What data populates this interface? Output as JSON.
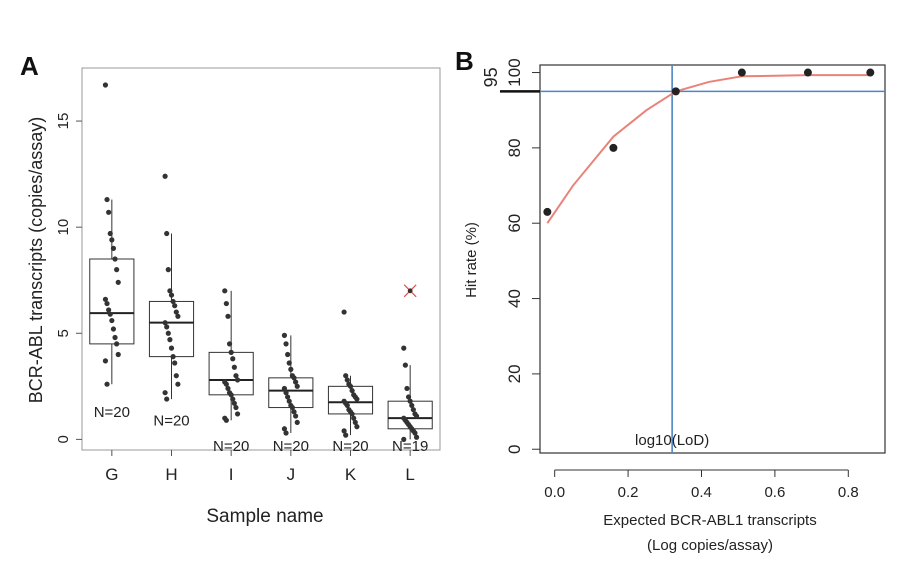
{
  "chart_data": [
    {
      "type": "box",
      "panel_label": "A",
      "xlabel": "Sample name",
      "ylabel": "BCR-ABL transcripts (copies/assay)",
      "ylim": [
        -0.5,
        17.5
      ],
      "yticks": [
        0,
        5,
        10,
        15
      ],
      "ytick_labels": [
        "0",
        "5",
        "10",
        "15"
      ],
      "categories": [
        "G",
        "H",
        "I",
        "J",
        "K",
        "L"
      ],
      "boxes": [
        {
          "name": "G",
          "q1": 4.5,
          "median": 5.95,
          "q3": 8.5,
          "whisker_low": 2.6,
          "whisker_high": 11.3,
          "n_label": "N=20",
          "points": [
            16.7,
            11.3,
            10.7,
            9.7,
            9.4,
            9.0,
            8.5,
            8.0,
            7.4,
            6.6,
            6.4,
            6.1,
            5.9,
            5.6,
            5.2,
            4.8,
            4.5,
            4.0,
            3.7,
            2.6
          ]
        },
        {
          "name": "H",
          "q1": 3.9,
          "median": 5.5,
          "q3": 6.5,
          "whisker_low": 1.9,
          "whisker_high": 9.7,
          "n_label": "N=20",
          "points": [
            12.4,
            9.7,
            8.0,
            7.0,
            6.8,
            6.5,
            6.3,
            6.0,
            5.8,
            5.5,
            5.3,
            5.0,
            4.7,
            4.3,
            3.9,
            3.6,
            3.0,
            2.6,
            2.2,
            1.9
          ]
        },
        {
          "name": "I",
          "q1": 2.1,
          "median": 2.8,
          "q3": 4.1,
          "whisker_low": 0.9,
          "whisker_high": 7.0,
          "n_label": "N=20",
          "points": [
            7.0,
            6.4,
            5.8,
            4.5,
            4.1,
            3.8,
            3.4,
            3.0,
            2.8,
            2.7,
            2.6,
            2.4,
            2.2,
            2.1,
            1.9,
            1.7,
            1.5,
            1.2,
            1.0,
            0.9
          ]
        },
        {
          "name": "J",
          "q1": 1.5,
          "median": 2.3,
          "q3": 2.9,
          "whisker_low": 0.3,
          "whisker_high": 4.9,
          "n_label": "N=20",
          "points": [
            4.9,
            4.5,
            4.0,
            3.6,
            3.3,
            3.0,
            2.9,
            2.7,
            2.5,
            2.4,
            2.2,
            2.0,
            1.8,
            1.6,
            1.5,
            1.3,
            1.1,
            0.8,
            0.5,
            0.3
          ]
        },
        {
          "name": "K",
          "q1": 1.2,
          "median": 1.75,
          "q3": 2.5,
          "whisker_low": 0.2,
          "whisker_high": 3.0,
          "n_label": "N=20",
          "points": [
            6.0,
            3.0,
            2.8,
            2.6,
            2.5,
            2.3,
            2.1,
            2.0,
            1.9,
            1.8,
            1.7,
            1.6,
            1.4,
            1.3,
            1.2,
            1.0,
            0.8,
            0.6,
            0.4,
            0.2
          ]
        },
        {
          "name": "L",
          "q1": 0.5,
          "median": 1.0,
          "q3": 1.8,
          "whisker_low": 0.0,
          "whisker_high": 3.5,
          "n_label": "N=19",
          "points": [
            4.3,
            3.5,
            2.4,
            2.0,
            1.8,
            1.6,
            1.4,
            1.2,
            1.1,
            1.0,
            0.9,
            0.8,
            0.7,
            0.6,
            0.5,
            0.4,
            0.3,
            0.1,
            0.0
          ],
          "outlier_x": 7.0
        }
      ],
      "n_label_y": [
        1.3,
        0.9,
        -0.3,
        -0.3,
        -0.3,
        -0.3
      ],
      "colors": {
        "box": "#333333",
        "point": "#333333",
        "outlier": "#d9534f",
        "frame": "#999999"
      }
    },
    {
      "type": "line",
      "panel_label": "B",
      "xlabel": "Expected BCR-ABL1 transcripts",
      "xlabel2": "(Log copies/assay)",
      "ylabel": "Hit rate (%)",
      "xlim": [
        -0.04,
        0.9
      ],
      "ylim": [
        -1,
        102
      ],
      "xticks": [
        0.0,
        0.2,
        0.4,
        0.6,
        0.8
      ],
      "xtick_labels": [
        "0.0",
        "0.2",
        "0.4",
        "0.6",
        "0.8"
      ],
      "yticks": [
        0,
        20,
        40,
        60,
        80,
        100
      ],
      "ytick_labels": [
        "0",
        "20",
        "40",
        "60",
        "80",
        "100"
      ],
      "extra_ytick": {
        "value": 95,
        "label": "95"
      },
      "points": {
        "x": [
          -0.02,
          0.16,
          0.33,
          0.51,
          0.69,
          0.86
        ],
        "y": [
          63,
          80,
          95,
          100,
          100,
          100
        ]
      },
      "fit": {
        "x": [
          -0.02,
          0.05,
          0.16,
          0.25,
          0.33,
          0.42,
          0.51,
          0.69,
          0.86
        ],
        "y": [
          60,
          70,
          83,
          90,
          95,
          97.5,
          99,
          99.3,
          99.3
        ]
      },
      "hline_y": 95,
      "vline_x": 0.32,
      "lod_label": "log10(LoD)",
      "colors": {
        "fit": "#e8837a",
        "ref_lines": "#4d86c6",
        "point": "#222222",
        "frame": "#333333"
      }
    }
  ]
}
